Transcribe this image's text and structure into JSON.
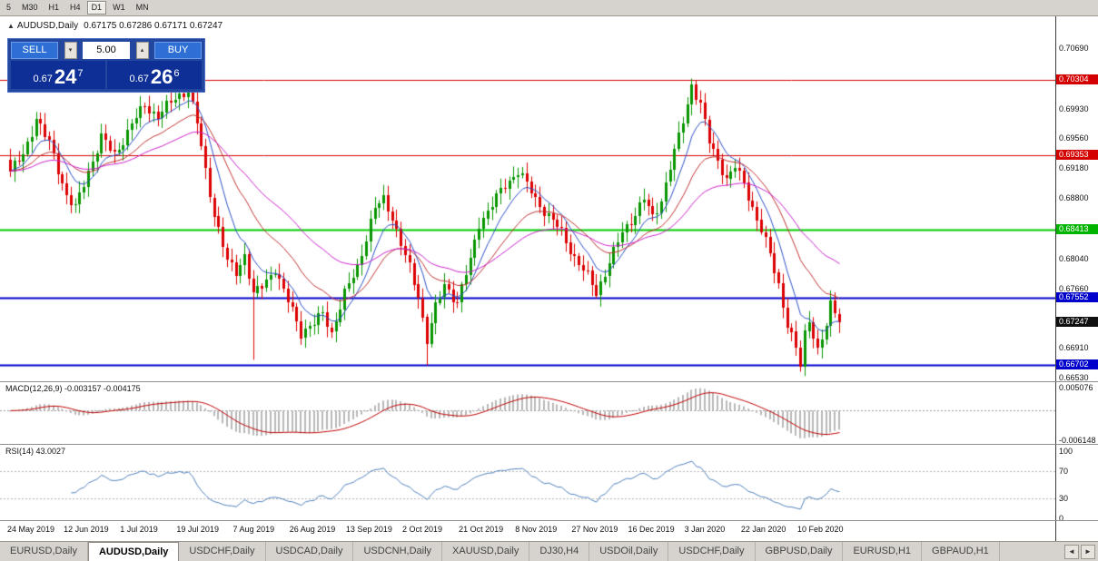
{
  "toolbar": {
    "timeframes": [
      "5",
      "M30",
      "H1",
      "H4",
      "D1",
      "W1",
      "MN"
    ],
    "active": "D1"
  },
  "chart": {
    "collapse_icon": "▲",
    "symbol_title": "AUDUSD,Daily",
    "ohlc": "0.67175 0.67286 0.67171 0.67247"
  },
  "trade_panel": {
    "sell_label": "SELL",
    "buy_label": "BUY",
    "volume": "5.00",
    "spin_down": "▾",
    "spin_up": "▴",
    "sell_price": {
      "prefix": "0.67",
      "big": "24",
      "sup": "7"
    },
    "buy_price": {
      "prefix": "0.67",
      "big": "26",
      "sup": "6"
    }
  },
  "chart_data": {
    "type": "candlestick",
    "symbol": "AUDUSD",
    "timeframe": "Daily",
    "n_candles": 192,
    "y_axis_range": {
      "top": 0.70854,
      "bottom": 0.66499
    },
    "candle_colors": {
      "up": "#089600",
      "down": "#dc0000"
    },
    "close_anchors": [
      [
        0,
        0.6915
      ],
      [
        3,
        0.6935
      ],
      [
        6,
        0.6982
      ],
      [
        9,
        0.695
      ],
      [
        13,
        0.6885
      ],
      [
        15,
        0.6868
      ],
      [
        18,
        0.6915
      ],
      [
        21,
        0.6958
      ],
      [
        24,
        0.6935
      ],
      [
        28,
        0.6975
      ],
      [
        31,
        0.6998
      ],
      [
        34,
        0.6985
      ],
      [
        38,
        0.7008
      ],
      [
        41,
        0.7018
      ],
      [
        43,
        0.6975
      ],
      [
        45,
        0.6915
      ],
      [
        47,
        0.6862
      ],
      [
        50,
        0.68
      ],
      [
        52,
        0.6788
      ],
      [
        54,
        0.681
      ],
      [
        56,
        0.6758
      ],
      [
        58,
        0.677
      ],
      [
        61,
        0.6792
      ],
      [
        63,
        0.6762
      ],
      [
        65,
        0.674
      ],
      [
        67,
        0.6712
      ],
      [
        70,
        0.6722
      ],
      [
        72,
        0.6735
      ],
      [
        74,
        0.6712
      ],
      [
        77,
        0.676
      ],
      [
        80,
        0.6795
      ],
      [
        82,
        0.6832
      ],
      [
        84,
        0.6868
      ],
      [
        86,
        0.688
      ],
      [
        88,
        0.6858
      ],
      [
        90,
        0.6822
      ],
      [
        92,
        0.6792
      ],
      [
        94,
        0.6758
      ],
      [
        96,
        0.6702
      ],
      [
        98,
        0.6742
      ],
      [
        100,
        0.6772
      ],
      [
        103,
        0.675
      ],
      [
        106,
        0.6802
      ],
      [
        108,
        0.685
      ],
      [
        111,
        0.6872
      ],
      [
        114,
        0.6898
      ],
      [
        117,
        0.6915
      ],
      [
        119,
        0.6898
      ],
      [
        121,
        0.688
      ],
      [
        124,
        0.6858
      ],
      [
        127,
        0.6838
      ],
      [
        130,
        0.6806
      ],
      [
        133,
        0.6782
      ],
      [
        135,
        0.6762
      ],
      [
        138,
        0.68
      ],
      [
        141,
        0.6838
      ],
      [
        144,
        0.6862
      ],
      [
        146,
        0.688
      ],
      [
        148,
        0.6856
      ],
      [
        150,
        0.688
      ],
      [
        152,
        0.692
      ],
      [
        154,
        0.6958
      ],
      [
        156,
        0.7
      ],
      [
        157,
        0.7025
      ],
      [
        159,
        0.6998
      ],
      [
        161,
        0.6952
      ],
      [
        163,
        0.693
      ],
      [
        165,
        0.6905
      ],
      [
        167,
        0.692
      ],
      [
        169,
        0.69
      ],
      [
        171,
        0.687
      ],
      [
        173,
        0.684
      ],
      [
        175,
        0.681
      ],
      [
        177,
        0.6772
      ],
      [
        179,
        0.6722
      ],
      [
        181,
        0.669
      ],
      [
        182,
        0.6668
      ],
      [
        183,
        0.671
      ],
      [
        184,
        0.673
      ],
      [
        186,
        0.6688
      ],
      [
        188,
        0.6718
      ],
      [
        189,
        0.6745
      ],
      [
        191,
        0.67247
      ]
    ],
    "wick_overrides": [
      {
        "i": 41,
        "high": 0.7028
      },
      {
        "i": 56,
        "low": 0.6677
      },
      {
        "i": 96,
        "low": 0.667
      },
      {
        "i": 157,
        "high": 0.7032
      },
      {
        "i": 182,
        "low": 0.6662
      }
    ],
    "levels": [
      {
        "price": 0.70304,
        "color": "#d40000",
        "width": 1
      },
      {
        "price": 0.69353,
        "color": "#d40000",
        "width": 1
      },
      {
        "price": 0.68413,
        "color": "#00cc00",
        "width": 2
      },
      {
        "price": 0.67552,
        "color": "#0000cc",
        "width": 2
      },
      {
        "price": 0.66702,
        "color": "#0000cc",
        "width": 2
      }
    ],
    "price_axis_labels": [
      {
        "text": "0.70690",
        "price": 0.7069,
        "type": "normal"
      },
      {
        "text": "0.70304",
        "price": 0.70304,
        "type": "red"
      },
      {
        "text": "0.69930",
        "price": 0.6993,
        "type": "normal"
      },
      {
        "text": "0.69560",
        "price": 0.6956,
        "type": "normal"
      },
      {
        "text": "0.69353",
        "price": 0.69353,
        "type": "red"
      },
      {
        "text": "0.69180",
        "price": 0.6918,
        "type": "normal"
      },
      {
        "text": "0.68800",
        "price": 0.688,
        "type": "normal"
      },
      {
        "text": "0.68413",
        "price": 0.68413,
        "type": "green"
      },
      {
        "text": "0.68040",
        "price": 0.6804,
        "type": "normal"
      },
      {
        "text": "0.67660",
        "price": 0.6766,
        "type": "normal"
      },
      {
        "text": "0.67552",
        "price": 0.67552,
        "type": "blue"
      },
      {
        "text": "0.67247",
        "price": 0.67247,
        "type": "current"
      },
      {
        "text": "0.66910",
        "price": 0.6691,
        "type": "normal"
      },
      {
        "text": "0.66702",
        "price": 0.66702,
        "type": "blue"
      },
      {
        "text": "0.66530",
        "price": 0.6653,
        "type": "normal"
      }
    ],
    "moving_averages": [
      {
        "name": "fast-ma",
        "period": 8,
        "color": "#2b50c8"
      },
      {
        "name": "mid-ma",
        "period": 20,
        "color": "#c03232"
      },
      {
        "name": "slow-ma",
        "period": 42,
        "color": "#cc22cc"
      }
    ],
    "x_axis_dates": [
      "24 May 2019",
      "12 Jun 2019",
      "1 Jul 2019",
      "19 Jul 2019",
      "7 Aug 2019",
      "26 Aug 2019",
      "13 Sep 2019",
      "2 Oct 2019",
      "21 Oct 2019",
      "8 Nov 2019",
      "27 Nov 2019",
      "16 Dec 2019",
      "3 Jan 2020",
      "22 Jan 2020",
      "10 Feb 2020"
    ],
    "macd": {
      "label": "MACD(12,26,9) -0.003157 -0.004175",
      "fast": 12,
      "slow": 26,
      "signal": 9,
      "current_main": -0.003157,
      "current_signal": -0.004175,
      "axis_labels": [
        "0.005076",
        "-0.006148"
      ],
      "bar_color": "#b8b8b8",
      "signal_color": "#c00000"
    },
    "rsi": {
      "label": "RSI(14) 43.0027",
      "period": 14,
      "current": 43.0027,
      "levels": [
        70,
        30
      ],
      "axis_labels": [
        "100",
        "70",
        "30",
        "0"
      ],
      "line_color": "#4f81bd"
    }
  },
  "tabs": {
    "items": [
      "EURUSD,Daily",
      "AUDUSD,Daily",
      "USDCHF,Daily",
      "USDCAD,Daily",
      "USDCNH,Daily",
      "XAUUSD,Daily",
      "DJ30,H4",
      "USDOil,Daily",
      "USDCHF,Daily",
      "GBPUSD,Daily",
      "EURUSD,H1",
      "GBPAUD,H1"
    ],
    "active_index": 1,
    "scroll_left": "◄",
    "scroll_right": "►"
  }
}
